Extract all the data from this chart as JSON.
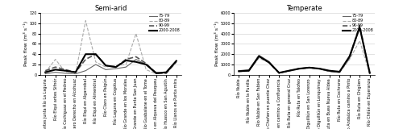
{
  "semi_arid": {
    "title": "Semi-arid",
    "ylabel": "Peak flow (m³ s⁻¹)",
    "ylim": [
      0,
      120
    ],
    "yticks": [
      0,
      20,
      40,
      60,
      80,
      100,
      120
    ],
    "stations": [
      "Río Elqui antes junta Río La Laguna",
      "Río Elqui antes Sifnór",
      "Río Cochiguaz en el Pedreo",
      "Estero Derecho en Alcohuaz",
      "Río Elqui en Algarrobal",
      "Río Elqui en Almendral",
      "Río Claro en Paigún",
      "Río Laguna en Cogotua",
      "Río Grande en los Morales",
      "Río Grande en Punta San Juan",
      "Río Guabalane en el Tome",
      "Río Huascalame en Alqueva del Peuqueu",
      "Río Huasco en San Agustín",
      "Río Llanos en Punta mira"
    ],
    "series": {
      "75-79": [
        2,
        5,
        3,
        2,
        8,
        20,
        10,
        12,
        15,
        30,
        20,
        5,
        3,
        25
      ],
      "80-89": [
        5,
        30,
        5,
        2,
        105,
        25,
        15,
        18,
        20,
        80,
        10,
        2,
        5,
        25
      ],
      "90-99": [
        8,
        15,
        10,
        5,
        30,
        40,
        18,
        15,
        30,
        35,
        22,
        3,
        3,
        25
      ],
      "2000-2008": [
        5,
        10,
        8,
        5,
        40,
        40,
        18,
        15,
        28,
        25,
        20,
        3,
        5,
        27
      ]
    }
  },
  "temperate": {
    "title": "Temperate",
    "ylabel": "Peak flow (m³ s⁻¹)",
    "ylim": [
      0,
      6000
    ],
    "yticks": [
      0,
      1000,
      2000,
      3000,
      4000,
      5000,
      6000
    ],
    "stations": [
      "Río Nuble",
      "Río Nuble en la Punilla",
      "Río Nuble en San Fabien",
      "Río Choñen en puente Choz",
      "Río Chilán en camino a Confluencia",
      "Río Ruta en general Cruz",
      "Río Ruta en Talofeo",
      "Río Diguilliún en San Lorenzo",
      "Río Diguilliún en Lonquimay",
      "Río Ruta en Buea Nueva Aldea",
      "Río Ruta en Cochrane",
      "Río Andaüca camino a Pinto",
      "Río Ruta en Chigüen",
      "Río Chilán en Esperanza"
    ],
    "series": {
      "75-79": [
        400,
        500,
        1900,
        1300,
        200,
        400,
        600,
        700,
        600,
        350,
        250,
        1600,
        4600,
        100
      ],
      "80-89": [
        300,
        350,
        1600,
        1200,
        150,
        350,
        550,
        650,
        550,
        300,
        200,
        1500,
        3300,
        80
      ],
      "90-99": [
        350,
        400,
        1800,
        1200,
        150,
        400,
        600,
        700,
        600,
        350,
        250,
        1700,
        4800,
        90
      ],
      "2000-2008": [
        350,
        400,
        1800,
        1200,
        200,
        400,
        600,
        700,
        600,
        400,
        300,
        1800,
        4600,
        200
      ]
    }
  },
  "line_styles": {
    "75-79": {
      "color": "#666666",
      "linestyle": "-",
      "linewidth": 0.8
    },
    "80-89": {
      "color": "#aaaaaa",
      "linestyle": "--",
      "linewidth": 0.8
    },
    "90-99": {
      "color": "#555555",
      "linestyle": "--",
      "linewidth": 1.2
    },
    "2000-2008": {
      "color": "#000000",
      "linestyle": "-",
      "linewidth": 1.5
    }
  },
  "legend_labels": [
    "75-79",
    "80-89",
    "90-99",
    "2000-2008"
  ],
  "background_color": "#ffffff",
  "tick_fontsize": 3.5,
  "label_fontsize": 4.5,
  "title_fontsize": 6.0
}
